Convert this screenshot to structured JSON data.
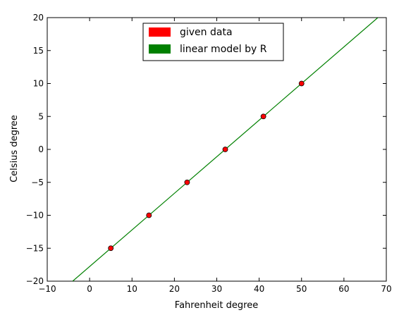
{
  "chart_data": {
    "type": "scatter",
    "title": "",
    "xlabel": "Fahrenheit degree",
    "ylabel": "Celsius degree",
    "xlim": [
      -10,
      70
    ],
    "ylim": [
      -20,
      20
    ],
    "x_ticks": [
      -10,
      0,
      10,
      20,
      30,
      40,
      50,
      60,
      70
    ],
    "y_ticks": [
      -20,
      -15,
      -10,
      -5,
      0,
      5,
      10,
      15,
      20
    ],
    "x_tick_labels": [
      "−10",
      "0",
      "10",
      "20",
      "30",
      "40",
      "50",
      "60",
      "70"
    ],
    "y_tick_labels": [
      "−20",
      "−15",
      "−10",
      "−5",
      "0",
      "5",
      "10",
      "15",
      "20"
    ],
    "grid": false,
    "legend_position": "top-center",
    "series": [
      {
        "name": "given data",
        "kind": "points",
        "color": "#ff0000",
        "x": [
          5,
          14,
          23,
          32,
          41,
          50
        ],
        "y": [
          -15,
          -10,
          -5,
          0,
          5,
          10
        ]
      },
      {
        "name": "linear model by R",
        "kind": "line",
        "color": "#008000",
        "x": [
          -4,
          68
        ],
        "y": [
          -20,
          20
        ]
      }
    ]
  }
}
